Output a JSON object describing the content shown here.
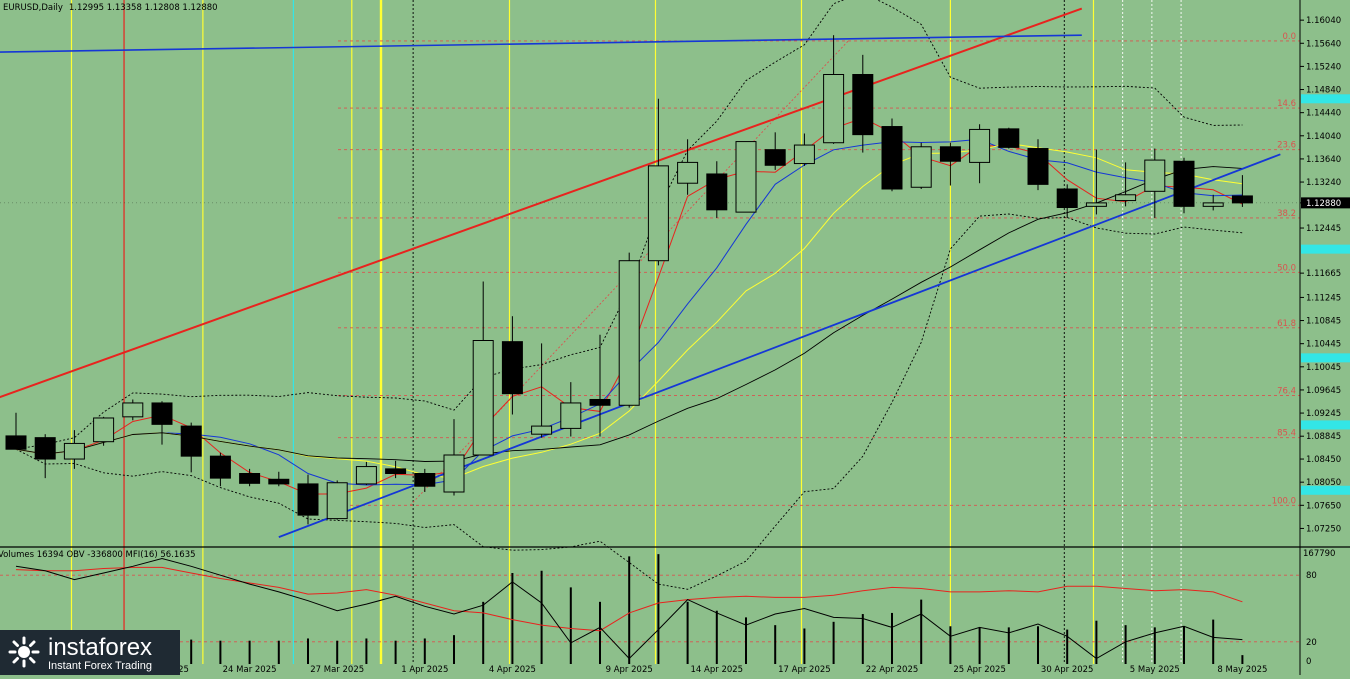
{
  "header": {
    "symbol_tf": "EURUSD,Daily",
    "ohlc": "1.12995 1.13358 1.12808 1.12880"
  },
  "logo": {
    "brand": "instaforex",
    "tagline": "Instant Forex Trading"
  },
  "colors": {
    "background": "#8dbf8b",
    "bull": "#8dbf8b",
    "bear": "#000000",
    "fib": "#d9534f",
    "red_trend": "#e8231e",
    "blue_trend": "#1537d6",
    "yellow_line": "#ffff33",
    "cyan_line": "#33e6e6",
    "cyan_label": "#33e6e6"
  },
  "chart_data": {
    "type": "candlestick",
    "price_axis": {
      "min": 1.0705,
      "max": 1.1625,
      "ticks": [
        "1.16040",
        "1.15640",
        "1.15240",
        "1.14840",
        "1.14440",
        "1.14040",
        "1.13640",
        "1.13240",
        "1.12880",
        "1.12445",
        "1.11665",
        "1.11245",
        "1.10845",
        "1.10445",
        "1.10045",
        "1.09645",
        "1.09245",
        "1.08845",
        "1.08450",
        "1.08050",
        "1.07650",
        "1.07250"
      ],
      "current_price": "1.12880",
      "cyan_levels": [
        1.1468,
        1.1208,
        1.102,
        1.0904,
        1.0791
      ]
    },
    "date_labels": [
      {
        "i": 5,
        "label": "19 Mar 2025"
      },
      {
        "i": 8,
        "label": "24 Mar 2025"
      },
      {
        "i": 11,
        "label": "27 Mar 2025"
      },
      {
        "i": 14,
        "label": "1 Apr 2025"
      },
      {
        "i": 17,
        "label": "4 Apr 2025"
      },
      {
        "i": 21,
        "label": "9 Apr 2025"
      },
      {
        "i": 24,
        "label": "14 Apr 2025"
      },
      {
        "i": 27,
        "label": "17 Apr 2025"
      },
      {
        "i": 30,
        "label": "22 Apr 2025"
      },
      {
        "i": 33,
        "label": "25 Apr 2025"
      },
      {
        "i": 36,
        "label": "30 Apr 2025"
      },
      {
        "i": 39,
        "label": "5 May 2025"
      },
      {
        "i": 42,
        "label": "8 May 2025"
      }
    ],
    "candles": [
      {
        "o": 1.0885,
        "h": 1.0925,
        "l": 1.0868,
        "c": 1.0862
      },
      {
        "o": 1.0882,
        "h": 1.0888,
        "l": 1.0812,
        "c": 1.0845
      },
      {
        "o": 1.0845,
        "h": 1.0895,
        "l": 1.0828,
        "c": 1.0872
      },
      {
        "o": 1.0875,
        "h": 1.0918,
        "l": 1.0868,
        "c": 1.0916
      },
      {
        "o": 1.0918,
        "h": 1.0948,
        "l": 1.0912,
        "c": 1.0942
      },
      {
        "o": 1.0942,
        "h": 1.0945,
        "l": 1.087,
        "c": 1.0905
      },
      {
        "o": 1.0902,
        "h": 1.0908,
        "l": 1.0822,
        "c": 1.085
      },
      {
        "o": 1.085,
        "h": 1.0856,
        "l": 1.0798,
        "c": 1.0812
      },
      {
        "o": 1.082,
        "h": 1.0828,
        "l": 1.0798,
        "c": 1.0803
      },
      {
        "o": 1.081,
        "h": 1.0823,
        "l": 1.0798,
        "c": 1.0802
      },
      {
        "o": 1.0802,
        "h": 1.0818,
        "l": 1.0732,
        "c": 1.0748
      },
      {
        "o": 1.0742,
        "h": 1.0808,
        "l": 1.074,
        "c": 1.0804
      },
      {
        "o": 1.0802,
        "h": 1.084,
        "l": 1.08,
        "c": 1.0832
      },
      {
        "o": 1.0828,
        "h": 1.0842,
        "l": 1.0812,
        "c": 1.082
      },
      {
        "o": 1.082,
        "h": 1.0828,
        "l": 1.0788,
        "c": 1.0798
      },
      {
        "o": 1.0788,
        "h": 1.0914,
        "l": 1.0782,
        "c": 1.0852
      },
      {
        "o": 1.0852,
        "h": 1.1152,
        "l": 1.0852,
        "c": 1.105
      },
      {
        "o": 1.1048,
        "h": 1.1092,
        "l": 1.0922,
        "c": 1.0958
      },
      {
        "o": 1.0888,
        "h": 1.1045,
        "l": 1.0882,
        "c": 1.0902
      },
      {
        "o": 1.0898,
        "h": 1.0978,
        "l": 1.0884,
        "c": 1.0942
      },
      {
        "o": 1.0948,
        "h": 1.106,
        "l": 1.0884,
        "c": 1.0938
      },
      {
        "o": 1.0938,
        "h": 1.1202,
        "l": 1.0934,
        "c": 1.1188
      },
      {
        "o": 1.1188,
        "h": 1.1468,
        "l": 1.118,
        "c": 1.1352
      },
      {
        "o": 1.1322,
        "h": 1.1398,
        "l": 1.1302,
        "c": 1.1358
      },
      {
        "o": 1.1338,
        "h": 1.136,
        "l": 1.1262,
        "c": 1.1276
      },
      {
        "o": 1.1272,
        "h": 1.1392,
        "l": 1.1272,
        "c": 1.1394
      },
      {
        "o": 1.138,
        "h": 1.141,
        "l": 1.1345,
        "c": 1.1353
      },
      {
        "o": 1.1356,
        "h": 1.1408,
        "l": 1.1352,
        "c": 1.1388
      },
      {
        "o": 1.1392,
        "h": 1.1578,
        "l": 1.139,
        "c": 1.151
      },
      {
        "o": 1.151,
        "h": 1.1544,
        "l": 1.1375,
        "c": 1.1406
      },
      {
        "o": 1.142,
        "h": 1.1434,
        "l": 1.1308,
        "c": 1.1312
      },
      {
        "o": 1.1315,
        "h": 1.1392,
        "l": 1.1312,
        "c": 1.1385
      },
      {
        "o": 1.1385,
        "h": 1.1392,
        "l": 1.1318,
        "c": 1.136
      },
      {
        "o": 1.1358,
        "h": 1.1424,
        "l": 1.1322,
        "c": 1.1415
      },
      {
        "o": 1.1416,
        "h": 1.1418,
        "l": 1.1382,
        "c": 1.1384
      },
      {
        "o": 1.1382,
        "h": 1.1398,
        "l": 1.131,
        "c": 1.132
      },
      {
        "o": 1.1312,
        "h": 1.132,
        "l": 1.1262,
        "c": 1.128
      },
      {
        "o": 1.1282,
        "h": 1.138,
        "l": 1.1268,
        "c": 1.1288
      },
      {
        "o": 1.1292,
        "h": 1.1358,
        "l": 1.1282,
        "c": 1.1302
      },
      {
        "o": 1.1308,
        "h": 1.1382,
        "l": 1.1262,
        "c": 1.1362
      },
      {
        "o": 1.136,
        "h": 1.1366,
        "l": 1.127,
        "c": 1.1282
      },
      {
        "o": 1.1282,
        "h": 1.1302,
        "l": 1.1275,
        "c": 1.1288
      },
      {
        "o": 1.13,
        "h": 1.1336,
        "l": 1.1281,
        "c": 1.1288
      }
    ],
    "fib_levels": [
      {
        "label": "0.0",
        "price": 1.1568
      },
      {
        "label": "14.6",
        "price": 1.1452
      },
      {
        "label": "23.6",
        "price": 1.138
      },
      {
        "label": "38.2",
        "price": 1.1262
      },
      {
        "label": "50.0",
        "price": 1.1168
      },
      {
        "label": "61.8",
        "price": 1.1072
      },
      {
        "label": "76.4",
        "price": 1.0955
      },
      {
        "label": "85.4",
        "price": 1.0882
      },
      {
        "label": "100.0",
        "price": 1.0765
      }
    ],
    "fib_anchor": {
      "i0": 13.5,
      "p0": 1.0765,
      "i1": 28.5,
      "p1": 1.1568
    },
    "red_trend": {
      "i0": -1.5,
      "p0": 1.0935,
      "i1": 36.5,
      "p1": 1.1624
    },
    "blue_trend_top": {
      "i0": -1.5,
      "p0": 1.1548,
      "i1": 36.5,
      "p1": 1.1578
    },
    "blue_trend_bottom": {
      "i0": 9.0,
      "p0": 1.071,
      "i1": 43.3,
      "p1": 1.1372
    },
    "vlines": [
      {
        "i": 1.9,
        "color": "#ffff33",
        "w": 1.2
      },
      {
        "i": 3.7,
        "color": "#e8231e",
        "w": 1.2
      },
      {
        "i": 6.4,
        "color": "#ffff33",
        "w": 1.2
      },
      {
        "i": 9.5,
        "color": "#33e6e6",
        "w": 1.2
      },
      {
        "i": 11.5,
        "color": "#ffff33",
        "w": 1.2
      },
      {
        "i": 12.5,
        "color": "#ffff33",
        "w": 2.4
      },
      {
        "i": 13.6,
        "color": "#000000",
        "w": 0.9,
        "dash": "2,2"
      },
      {
        "i": 16.9,
        "color": "#ffff33",
        "w": 1.2
      },
      {
        "i": 21.9,
        "color": "#ffff33",
        "w": 1.2
      },
      {
        "i": 26.9,
        "color": "#ffff33",
        "w": 1.2
      },
      {
        "i": 32.0,
        "color": "#ffff33",
        "w": 1.2
      },
      {
        "i": 35.9,
        "color": "#000000",
        "w": 0.9,
        "dash": "2,2"
      },
      {
        "i": 36.9,
        "color": "#ffff33",
        "w": 1.2
      },
      {
        "i": 37.9,
        "color": "#ffffff",
        "w": 0.9,
        "dash": "2,2"
      },
      {
        "i": 38.9,
        "color": "#ffffff",
        "w": 0.9,
        "dash": "2,2"
      },
      {
        "i": 39.9,
        "color": "#ffffff",
        "w": 0.9,
        "dash": "2,2"
      }
    ],
    "indicator": {
      "title": "Volumes 16394  OBV -336800  MFI(16) 56.1635",
      "scale_max_label": "167790",
      "ticks": [
        "80",
        "20",
        "0"
      ],
      "volumes": [
        0.22,
        0.2,
        0.23,
        0.24,
        0.2,
        0.2,
        0.22,
        0.21,
        0.21,
        0.21,
        0.23,
        0.21,
        0.23,
        0.21,
        0.23,
        0.26,
        0.56,
        0.82,
        0.84,
        0.69,
        0.56,
        0.97,
        0.99,
        0.56,
        0.48,
        0.42,
        0.35,
        0.32,
        0.38,
        0.45,
        0.46,
        0.58,
        0.34,
        0.33,
        0.33,
        0.34,
        0.31,
        0.39,
        0.35,
        0.33,
        0.34,
        0.4,
        0.08
      ],
      "obv": [
        0.88,
        0.84,
        0.76,
        0.82,
        0.88,
        0.95,
        0.88,
        0.8,
        0.72,
        0.65,
        0.57,
        0.48,
        0.54,
        0.61,
        0.52,
        0.45,
        0.53,
        0.74,
        0.55,
        0.19,
        0.33,
        0.05,
        0.31,
        0.58,
        0.46,
        0.35,
        0.45,
        0.5,
        0.42,
        0.41,
        0.33,
        0.45,
        0.25,
        0.33,
        0.28,
        0.36,
        0.25,
        0.05,
        0.2,
        0.28,
        0.34,
        0.24,
        0.22
      ],
      "mfi": [
        0.85,
        0.84,
        0.84,
        0.86,
        0.87,
        0.87,
        0.82,
        0.77,
        0.73,
        0.69,
        0.63,
        0.64,
        0.67,
        0.62,
        0.55,
        0.48,
        0.46,
        0.4,
        0.35,
        0.32,
        0.3,
        0.46,
        0.55,
        0.58,
        0.6,
        0.61,
        0.6,
        0.6,
        0.62,
        0.66,
        0.69,
        0.68,
        0.65,
        0.65,
        0.66,
        0.65,
        0.7,
        0.7,
        0.68,
        0.66,
        0.67,
        0.65,
        0.56
      ]
    }
  }
}
